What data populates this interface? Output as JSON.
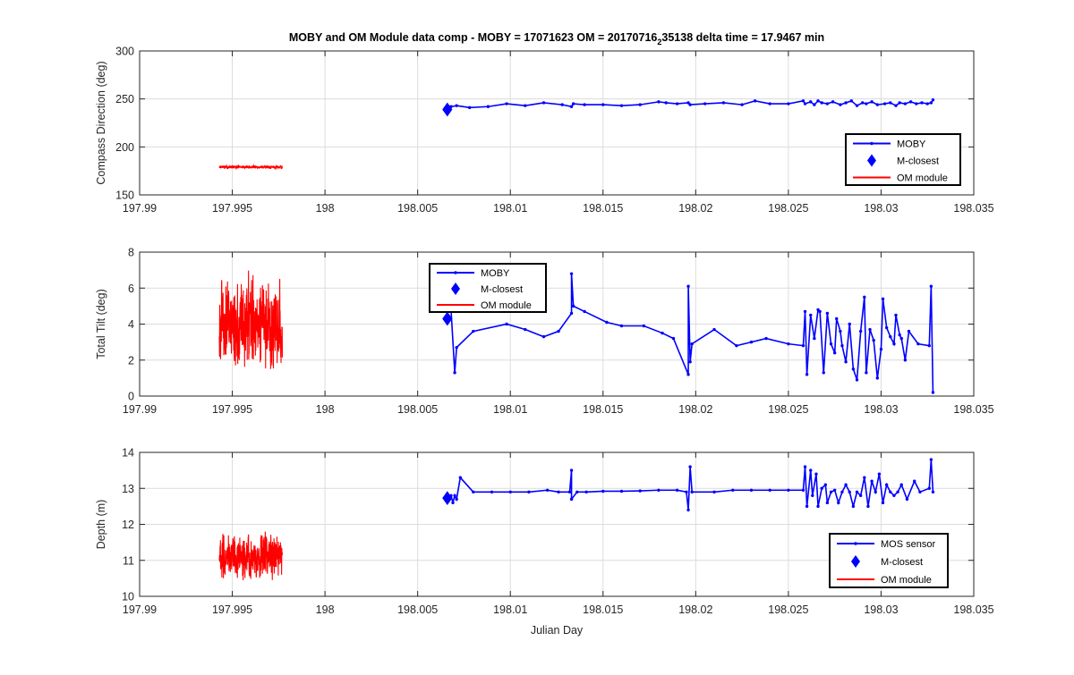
{
  "figure": {
    "title_main": "MOBY and OM Module data comp - MOBY = 17071623 OM = 20170716",
    "title_sub": "2",
    "title_tail": "35138 delta time = 17.9467 min"
  },
  "colors": {
    "moby": "#0000ff",
    "om": "#ff0000",
    "grid": "#dcdcdc",
    "axis": "#262626"
  },
  "chart_data": [
    {
      "type": "line",
      "id": "compass",
      "ylabel": "Compass Direction (deg)",
      "xlabel": "",
      "xlim": [
        197.99,
        198.035
      ],
      "ylim": [
        150,
        300
      ],
      "xticks": [
        197.99,
        197.995,
        198,
        198.005,
        198.01,
        198.015,
        198.02,
        198.025,
        198.03,
        198.035
      ],
      "xtick_labels": [
        "197.99",
        "197.995",
        "198",
        "198.005",
        "198.01",
        "198.015",
        "198.02",
        "198.025",
        "198.03",
        "198.035"
      ],
      "yticks": [
        150,
        200,
        250,
        300
      ],
      "ytick_labels": [
        "150",
        "200",
        "250",
        "300"
      ],
      "grid": true,
      "legend_position": "lower-right",
      "series": [
        {
          "name": "MOBY",
          "style": "line-dots",
          "x": [
            198.0068,
            198.0071,
            198.0078,
            198.0088,
            198.0098,
            198.0108,
            198.0118,
            198.0128,
            198.0133,
            198.0134,
            198.014,
            198.015,
            198.016,
            198.017,
            198.018,
            198.0184,
            198.019,
            198.0196,
            198.0197,
            198.0205,
            198.0215,
            198.0225,
            198.0232,
            198.024,
            198.025,
            198.0258,
            198.0259,
            198.0262,
            198.0264,
            198.0266,
            198.0268,
            198.0271,
            198.0274,
            198.0278,
            198.0281,
            198.0284,
            198.0287,
            198.029,
            198.0292,
            198.0295,
            198.0298,
            198.0302,
            198.0305,
            198.0308,
            198.031,
            198.0313,
            198.0316,
            198.0319,
            198.0322,
            198.0325,
            198.0327,
            198.0328
          ],
          "y": [
            242,
            243,
            241,
            242,
            245,
            243,
            246,
            244,
            242,
            245,
            244,
            244,
            243,
            244,
            247,
            246,
            245,
            246,
            244,
            245,
            246,
            244,
            248,
            245,
            245,
            248,
            245,
            247,
            244,
            248,
            246,
            245,
            247,
            244,
            246,
            248,
            243,
            246,
            245,
            247,
            244,
            245,
            246,
            243,
            246,
            245,
            247,
            245,
            246,
            245,
            246,
            249
          ]
        },
        {
          "name": "M-closest",
          "style": "diamond",
          "x": [
            198.0066
          ],
          "y": [
            239
          ]
        },
        {
          "name": "OM module",
          "style": "noisy-line",
          "x_range": [
            197.9943,
            197.9977
          ],
          "center": 179,
          "amplitude": 2
        }
      ],
      "legend": [
        "MOBY",
        "M-closest",
        "OM module"
      ]
    },
    {
      "type": "line",
      "id": "tilt",
      "ylabel": "Total Tilt (deg)",
      "xlabel": "",
      "xlim": [
        197.99,
        198.035
      ],
      "ylim": [
        0,
        8
      ],
      "xticks": [
        197.99,
        197.995,
        198,
        198.005,
        198.01,
        198.015,
        198.02,
        198.025,
        198.03,
        198.035
      ],
      "xtick_labels": [
        "197.99",
        "197.995",
        "198",
        "198.005",
        "198.01",
        "198.015",
        "198.02",
        "198.025",
        "198.03",
        "198.035"
      ],
      "yticks": [
        0,
        2,
        4,
        6,
        8
      ],
      "ytick_labels": [
        "0",
        "2",
        "4",
        "6",
        "8"
      ],
      "grid": true,
      "legend_position": "upper-center",
      "series": [
        {
          "name": "MOBY",
          "style": "line-dots",
          "x": [
            198.0068,
            198.007,
            198.0071,
            198.008,
            198.0098,
            198.0108,
            198.0118,
            198.0126,
            198.0133,
            198.0133,
            198.0134,
            198.014,
            198.0152,
            198.016,
            198.0172,
            198.0182,
            198.0188,
            198.0196,
            198.0196,
            198.0197,
            198.0198,
            198.021,
            198.0222,
            198.023,
            198.0238,
            198.025,
            198.0258,
            198.0259,
            198.026,
            198.0262,
            198.0264,
            198.0266,
            198.0267,
            198.0269,
            198.0271,
            198.0273,
            198.0275,
            198.0276,
            198.0278,
            198.0279,
            198.0281,
            198.0283,
            198.0285,
            198.0287,
            198.0289,
            198.0291,
            198.0292,
            198.0294,
            198.0296,
            198.0298,
            198.03,
            198.0301,
            198.0303,
            198.0305,
            198.0307,
            198.0308,
            198.031,
            198.0311,
            198.0313,
            198.0315,
            198.032,
            198.0326,
            198.0327,
            198.0328
          ],
          "y": [
            4.8,
            1.3,
            2.7,
            3.6,
            4.0,
            3.7,
            3.3,
            3.6,
            4.6,
            6.8,
            5.0,
            4.7,
            4.1,
            3.9,
            3.9,
            3.5,
            3.2,
            1.2,
            6.1,
            1.9,
            2.9,
            3.7,
            2.8,
            3.0,
            3.2,
            2.9,
            2.8,
            4.7,
            1.2,
            4.5,
            3.2,
            4.8,
            4.7,
            1.3,
            4.6,
            2.9,
            2.4,
            4.3,
            3.6,
            2.8,
            1.9,
            4.0,
            1.5,
            0.9,
            3.6,
            5.5,
            1.3,
            3.7,
            3.1,
            1.0,
            2.6,
            5.4,
            3.8,
            3.3,
            2.9,
            4.5,
            3.4,
            3.2,
            2.0,
            3.6,
            2.9,
            2.8,
            6.1,
            0.2
          ]
        },
        {
          "name": "M-closest",
          "style": "diamond",
          "x": [
            198.0066
          ],
          "y": [
            4.3
          ]
        },
        {
          "name": "OM module",
          "style": "noisy-line",
          "x_range": [
            197.9943,
            197.9977
          ],
          "center": 4.0,
          "amplitude": 3.0
        }
      ],
      "legend": [
        "MOBY",
        "M-closest",
        "OM module"
      ]
    },
    {
      "type": "line",
      "id": "depth",
      "ylabel": "Depth (m)",
      "xlabel": "Julian Day",
      "xlim": [
        197.99,
        198.035
      ],
      "ylim": [
        10,
        14
      ],
      "xticks": [
        197.99,
        197.995,
        198,
        198.005,
        198.01,
        198.015,
        198.02,
        198.025,
        198.03,
        198.035
      ],
      "xtick_labels": [
        "197.99",
        "197.995",
        "198",
        "198.005",
        "198.01",
        "198.015",
        "198.02",
        "198.025",
        "198.03",
        "198.035"
      ],
      "yticks": [
        10,
        11,
        12,
        13,
        14
      ],
      "ytick_labels": [
        "10",
        "11",
        "12",
        "13",
        "14"
      ],
      "grid": true,
      "legend_position": "lower-right",
      "series": [
        {
          "name": "MOS sensor",
          "style": "line-dots",
          "x": [
            198.0068,
            198.0069,
            198.007,
            198.0071,
            198.0073,
            198.008,
            198.009,
            198.01,
            198.011,
            198.012,
            198.0126,
            198.0132,
            198.0133,
            198.0133,
            198.0136,
            198.0141,
            198.015,
            198.016,
            198.017,
            198.018,
            198.019,
            198.0195,
            198.0196,
            198.0197,
            198.0198,
            198.021,
            198.022,
            198.023,
            198.024,
            198.025,
            198.0258,
            198.0259,
            198.026,
            198.0262,
            198.0263,
            198.0265,
            198.0266,
            198.0268,
            198.027,
            198.0271,
            198.0273,
            198.0275,
            198.0277,
            198.0279,
            198.0281,
            198.0283,
            198.0285,
            198.0287,
            198.0289,
            198.0291,
            198.0293,
            198.0295,
            198.0297,
            198.0299,
            198.0301,
            198.0303,
            198.0305,
            198.0307,
            198.0309,
            198.0311,
            198.0314,
            198.0318,
            198.0321,
            198.0326,
            198.0327,
            198.0328
          ],
          "y": [
            12.8,
            12.6,
            12.8,
            12.7,
            13.3,
            12.9,
            12.9,
            12.9,
            12.9,
            12.95,
            12.9,
            12.9,
            13.5,
            12.7,
            12.9,
            12.9,
            12.92,
            12.92,
            12.93,
            12.95,
            12.95,
            12.9,
            12.4,
            13.6,
            12.9,
            12.9,
            12.95,
            12.95,
            12.95,
            12.95,
            12.95,
            13.6,
            12.5,
            13.5,
            12.8,
            13.4,
            12.5,
            13.0,
            13.1,
            12.6,
            12.9,
            12.95,
            12.6,
            12.9,
            13.1,
            12.9,
            12.5,
            12.9,
            12.8,
            13.3,
            12.5,
            13.2,
            12.9,
            13.4,
            12.6,
            13.1,
            12.9,
            12.8,
            12.9,
            13.1,
            12.7,
            13.2,
            12.9,
            13.0,
            13.8,
            12.9
          ]
        },
        {
          "name": "M-closest",
          "style": "diamond",
          "x": [
            198.0066
          ],
          "y": [
            12.73
          ]
        },
        {
          "name": "OM module",
          "style": "noisy-line",
          "x_range": [
            197.9943,
            197.9977
          ],
          "center": 11.1,
          "amplitude": 0.75
        }
      ],
      "legend": [
        "MOS sensor",
        "M-closest",
        "OM module"
      ]
    }
  ]
}
